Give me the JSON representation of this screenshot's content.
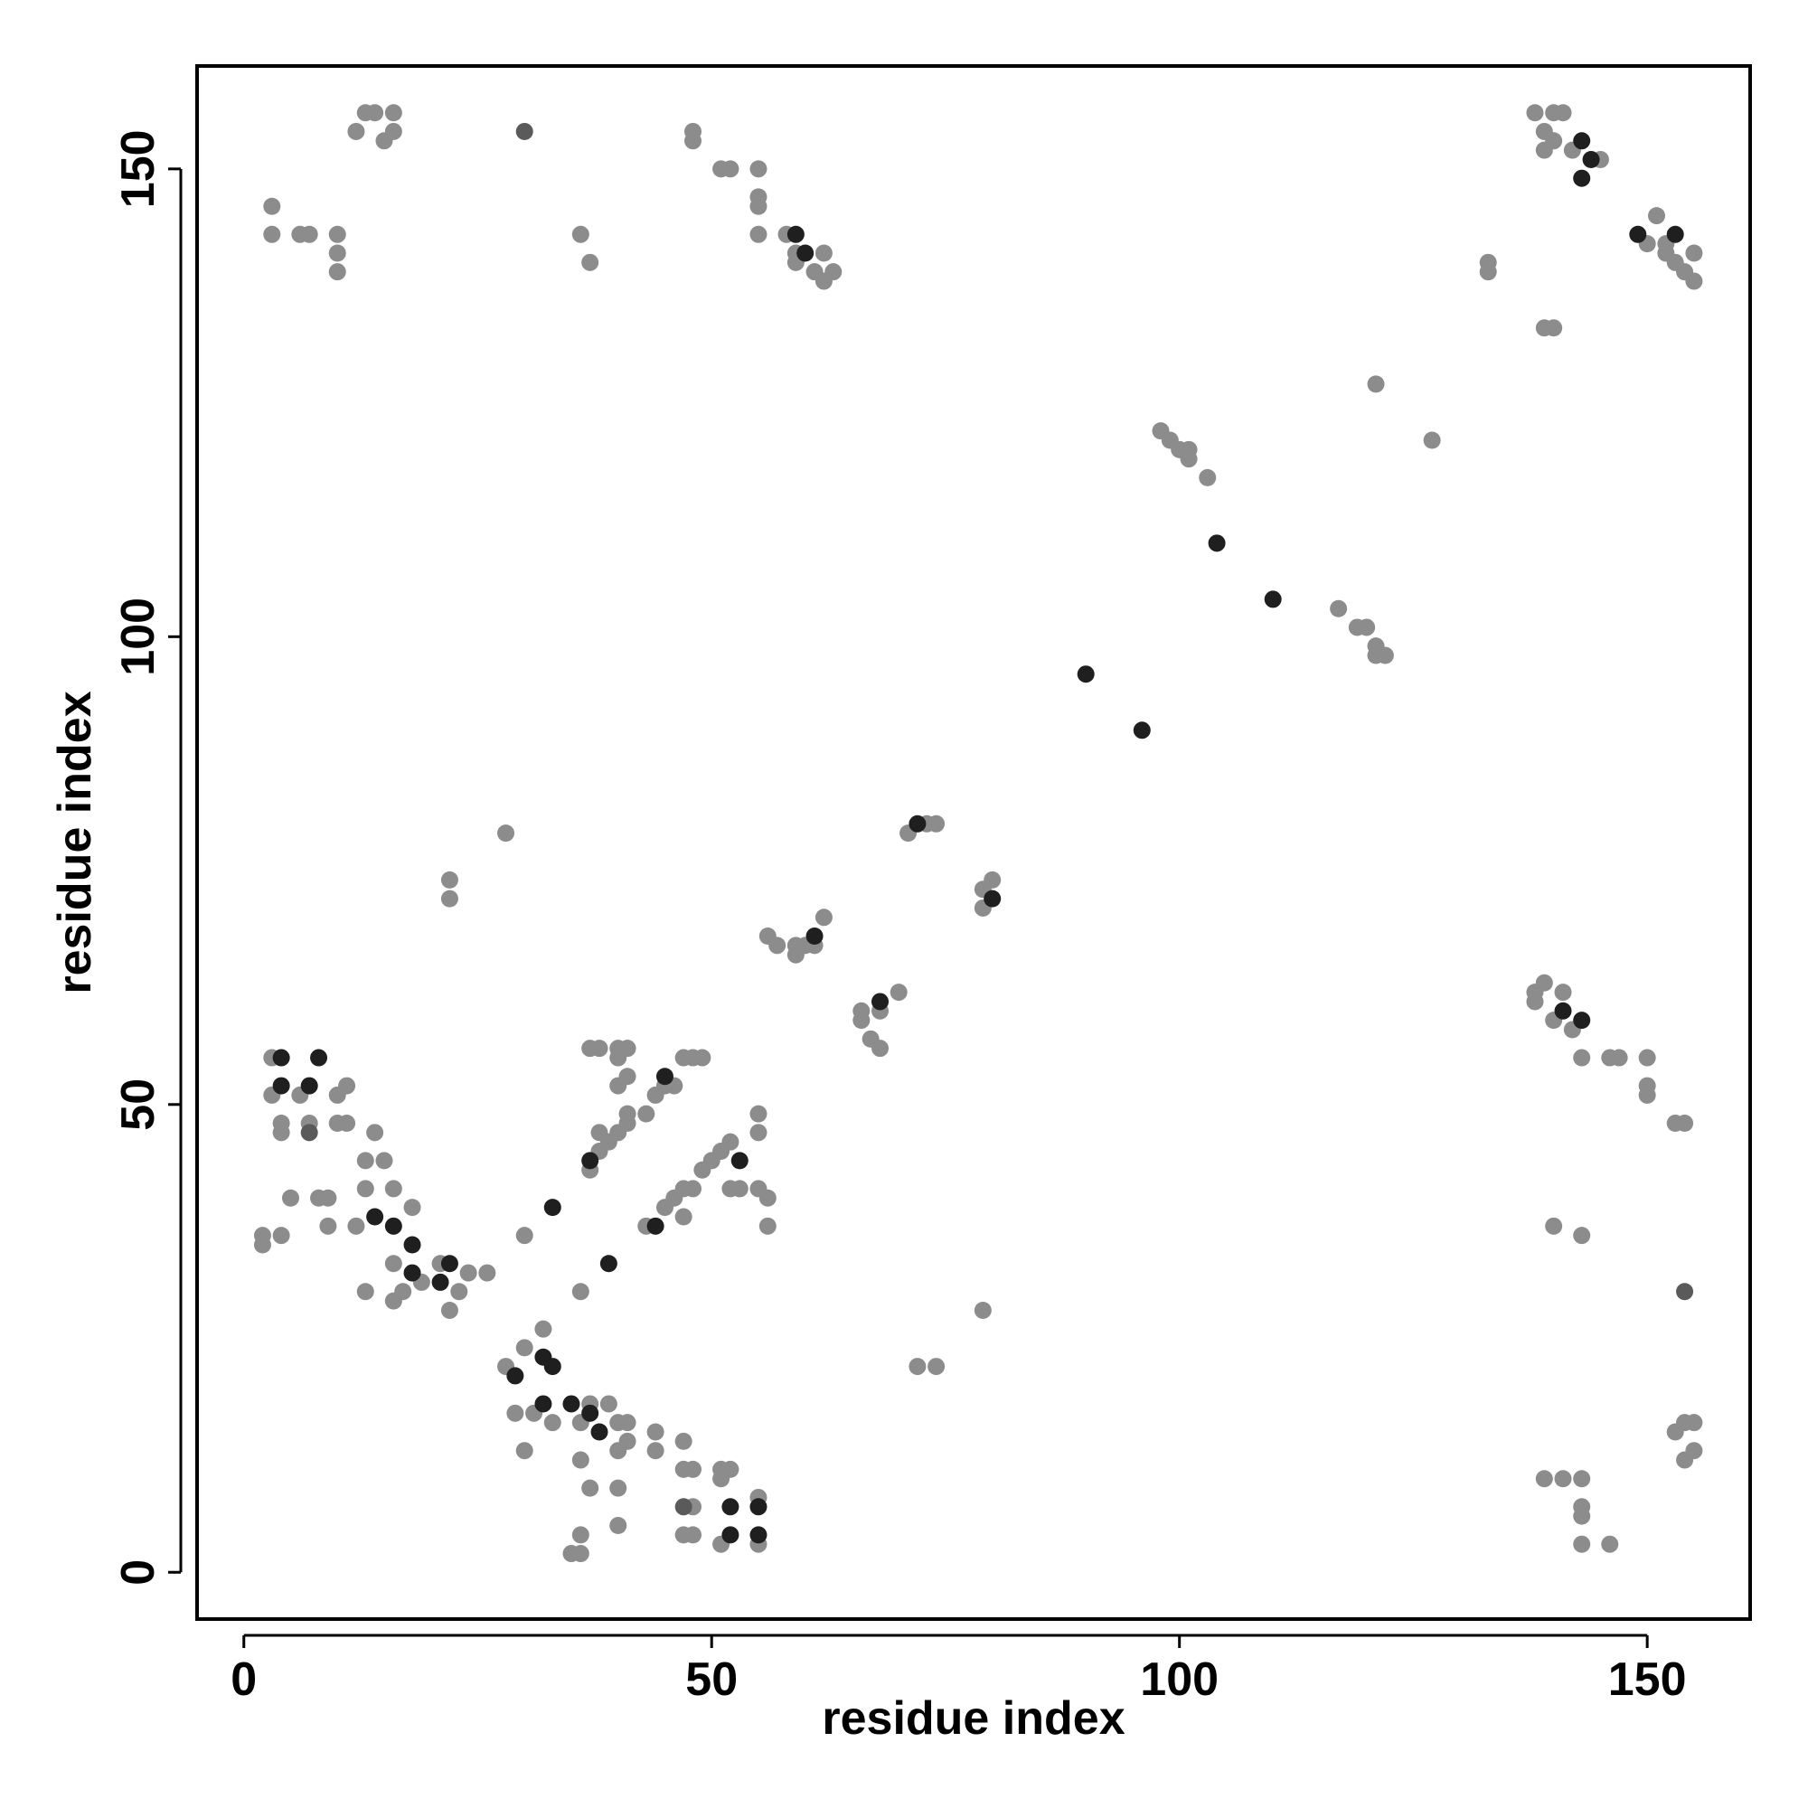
{
  "chart_data": {
    "type": "scatter",
    "x_label": "residue index",
    "y_label": "residue index",
    "xlim": [
      -5,
      161
    ],
    "ylim": [
      -5,
      161
    ],
    "xticks": [
      0,
      50,
      100,
      150
    ],
    "yticks": [
      0,
      50,
      100,
      150
    ],
    "series": [
      {
        "color": "#8c8c8c",
        "x": [
          12,
          13,
          14,
          15,
          16,
          16,
          3,
          3,
          6,
          7,
          10,
          10,
          10,
          36,
          37,
          48,
          48,
          51,
          52,
          55,
          55,
          55,
          55,
          58,
          59,
          59,
          61,
          62,
          62,
          63,
          138,
          139,
          140,
          141,
          142,
          140,
          139,
          145,
          133,
          133,
          139,
          140,
          151,
          150,
          152,
          153,
          154,
          155,
          155,
          152,
          121,
          127,
          98,
          99,
          100,
          101,
          101,
          103,
          117,
          119,
          120,
          121,
          122,
          121,
          28,
          22,
          22,
          71,
          73,
          74,
          79,
          80,
          79,
          56,
          57,
          59,
          59,
          60,
          61,
          62,
          66,
          66,
          67,
          68,
          70,
          68,
          139,
          138,
          138,
          141,
          140,
          142,
          143,
          146,
          147,
          150,
          150,
          150,
          153,
          154,
          140,
          143,
          154,
          153,
          155,
          155,
          154,
          139,
          141,
          143,
          143,
          143,
          143,
          146,
          72,
          74,
          79,
          3,
          3,
          4,
          4,
          6,
          7,
          10,
          10,
          11,
          11,
          2,
          2,
          4,
          5,
          8,
          9,
          9,
          12,
          13,
          15,
          14,
          13,
          16,
          13,
          16,
          16,
          18,
          17,
          19,
          21,
          22,
          24,
          26,
          23,
          30,
          36,
          28,
          30,
          32,
          29,
          31,
          30,
          33,
          36,
          37,
          39,
          40,
          41,
          40,
          41,
          44,
          44,
          36,
          37,
          40,
          40,
          36,
          35,
          36,
          47,
          47,
          48,
          48,
          47,
          48,
          51,
          52,
          51,
          51,
          55,
          55,
          37,
          38,
          40,
          41,
          40,
          41,
          40,
          37,
          38,
          39,
          40,
          41,
          41,
          38,
          43,
          44,
          45,
          46,
          47,
          48,
          49,
          43,
          45,
          46,
          47,
          48,
          49,
          50,
          51,
          52,
          47,
          52,
          53,
          55,
          55,
          55,
          56,
          56
        ],
        "y": [
          154,
          156,
          156,
          153,
          156,
          154,
          146,
          143,
          143,
          143,
          143,
          141,
          139,
          143,
          140,
          154,
          153,
          150,
          150,
          150,
          147,
          146,
          143,
          143,
          141,
          140,
          139,
          141,
          138,
          139,
          156,
          154,
          153,
          156,
          152,
          156,
          152,
          151,
          140,
          139,
          133,
          133,
          145,
          142,
          141,
          140,
          139,
          141,
          138,
          142,
          127,
          121,
          122,
          121,
          120,
          120,
          119,
          117,
          103,
          101,
          101,
          99,
          98,
          98,
          79,
          74,
          72,
          79,
          80,
          80,
          73,
          74,
          71,
          68,
          67,
          67,
          66,
          67,
          67,
          70,
          60,
          59,
          57,
          56,
          62,
          60,
          63,
          62,
          61,
          62,
          59,
          58,
          55,
          55,
          55,
          55,
          52,
          51,
          48,
          48,
          37,
          36,
          16,
          15,
          16,
          13,
          12,
          10,
          10,
          10,
          7,
          6,
          3,
          3,
          22,
          22,
          28,
          55,
          51,
          48,
          47,
          51,
          48,
          51,
          48,
          52,
          48,
          36,
          35,
          36,
          40,
          40,
          40,
          37,
          37,
          44,
          44,
          47,
          41,
          41,
          30,
          33,
          29,
          39,
          30,
          31,
          33,
          28,
          32,
          32,
          30,
          36,
          30,
          22,
          24,
          26,
          17,
          17,
          13,
          16,
          16,
          18,
          18,
          16,
          16,
          13,
          14,
          15,
          13,
          12,
          9,
          9,
          5,
          4,
          2,
          2,
          14,
          11,
          11,
          7,
          4,
          4,
          11,
          11,
          10,
          3,
          8,
          3,
          56,
          56,
          56,
          56,
          55,
          53,
          52,
          43,
          45,
          46,
          47,
          48,
          49,
          47,
          49,
          51,
          52,
          52,
          55,
          55,
          55,
          37,
          39,
          40,
          41,
          41,
          43,
          44,
          45,
          46,
          38,
          41,
          41,
          49,
          47,
          41,
          40,
          37
        ]
      },
      {
        "color": "#5a5a5a",
        "x": [
          30,
          7,
          154,
          47
        ],
        "y": [
          154,
          47,
          30,
          7
        ]
      },
      {
        "color": "#1f1f1f",
        "x": [
          4,
          8,
          4,
          7,
          143,
          144,
          143,
          59,
          60,
          149,
          153,
          104,
          110,
          90,
          96,
          72,
          80,
          61,
          68,
          141,
          143,
          45,
          37,
          53,
          33,
          39,
          44,
          14,
          16,
          18,
          18,
          22,
          21,
          29,
          32,
          33,
          32,
          35,
          37,
          38,
          52,
          55,
          52,
          55
        ],
        "y": [
          55,
          55,
          52,
          52,
          153,
          151,
          149,
          143,
          141,
          143,
          143,
          110,
          104,
          96,
          90,
          80,
          72,
          68,
          61,
          60,
          59,
          53,
          44,
          44,
          39,
          33,
          37,
          38,
          37,
          35,
          32,
          33,
          31,
          21,
          23,
          22,
          18,
          18,
          17,
          15,
          7,
          7,
          4,
          4
        ]
      }
    ]
  }
}
